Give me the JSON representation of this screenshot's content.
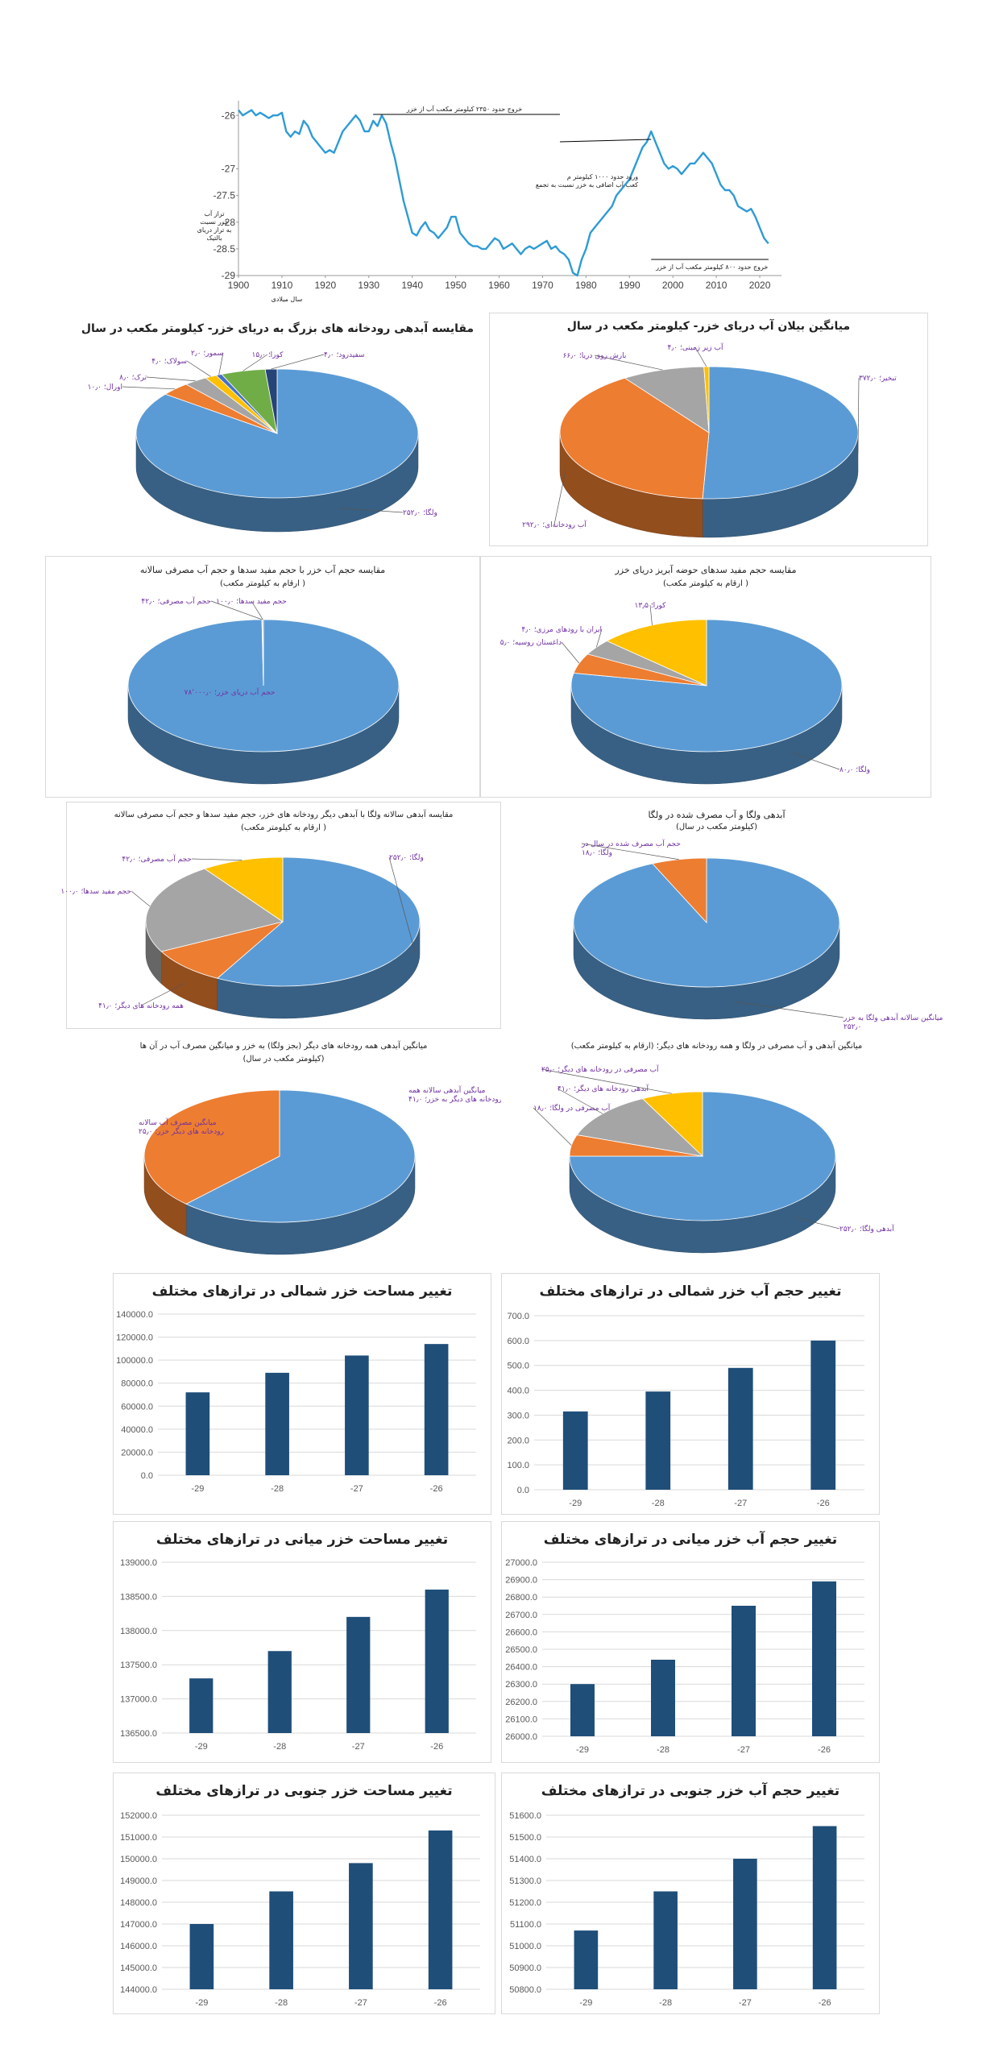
{
  "chart_data": [
    {
      "id": "line",
      "type": "line",
      "title": "",
      "xlabel": "سال میلادی",
      "ylabel": "تراز آب خزر نسبت به تراز دریای بالتیک",
      "xlim": [
        1900,
        2025
      ],
      "ylim": [
        -29,
        -25.8
      ],
      "xticks": [
        "1900",
        "1910",
        "1920",
        "1930",
        "1940",
        "1950",
        "1960",
        "1970",
        "1980",
        "1990",
        "2000",
        "2010",
        "2020"
      ],
      "yticks": [
        "-26",
        "-27",
        "-27.5",
        "-28",
        "-28.5",
        "-29"
      ],
      "ytick_values": [
        -26,
        -27,
        -27.5,
        -28,
        -28.5,
        -29
      ],
      "color": "#2e9bd6",
      "x": [
        1900,
        1901,
        1902,
        1903,
        1904,
        1905,
        1906,
        1907,
        1908,
        1909,
        1910,
        1911,
        1912,
        1913,
        1914,
        1915,
        1916,
        1917,
        1918,
        1919,
        1920,
        1921,
        1922,
        1923,
        1924,
        1925,
        1926,
        1927,
        1928,
        1929,
        1930,
        1931,
        1932,
        1933,
        1934,
        1935,
        1936,
        1937,
        1938,
        1939,
        1940,
        1941,
        1942,
        1943,
        1944,
        1945,
        1946,
        1947,
        1948,
        1949,
        1950,
        1951,
        1952,
        1953,
        1954,
        1955,
        1956,
        1957,
        1958,
        1959,
        1960,
        1961,
        1962,
        1963,
        1964,
        1965,
        1966,
        1967,
        1968,
        1969,
        1970,
        1971,
        1972,
        1973,
        1974,
        1975,
        1976,
        1977,
        1978,
        1979,
        1980,
        1981,
        1982,
        1983,
        1984,
        1985,
        1986,
        1987,
        1988,
        1989,
        1990,
        1991,
        1992,
        1993,
        1994,
        1995,
        1996,
        1997,
        1998,
        1999,
        2000,
        2001,
        2002,
        2003,
        2004,
        2005,
        2006,
        2007,
        2008,
        2009,
        2010,
        2011,
        2012,
        2013,
        2014,
        2015,
        2016,
        2017,
        2018,
        2019,
        2020,
        2021,
        2022
      ],
      "y": [
        -25.9,
        -26.0,
        -25.95,
        -25.9,
        -26.0,
        -25.95,
        -26.0,
        -26.05,
        -26.0,
        -26.0,
        -25.95,
        -26.3,
        -26.4,
        -26.3,
        -26.35,
        -26.1,
        -26.2,
        -26.4,
        -26.5,
        -26.6,
        -26.7,
        -26.65,
        -26.7,
        -26.5,
        -26.3,
        -26.2,
        -26.1,
        -26.0,
        -26.1,
        -26.3,
        -26.3,
        -26.1,
        -26.2,
        -26.0,
        -26.15,
        -26.5,
        -26.8,
        -27.2,
        -27.6,
        -27.9,
        -28.2,
        -28.25,
        -28.1,
        -28.0,
        -28.15,
        -28.2,
        -28.3,
        -28.2,
        -28.1,
        -27.9,
        -27.9,
        -28.2,
        -28.3,
        -28.4,
        -28.45,
        -28.45,
        -28.5,
        -28.5,
        -28.4,
        -28.3,
        -28.35,
        -28.5,
        -28.45,
        -28.4,
        -28.5,
        -28.6,
        -28.5,
        -28.45,
        -28.5,
        -28.45,
        -28.4,
        -28.35,
        -28.5,
        -28.45,
        -28.55,
        -28.6,
        -28.7,
        -28.95,
        -29.0,
        -28.7,
        -28.5,
        -28.2,
        -28.1,
        -28.0,
        -27.9,
        -27.8,
        -27.7,
        -27.5,
        -27.4,
        -27.3,
        -27.2,
        -27.0,
        -26.8,
        -26.6,
        -26.5,
        -26.3,
        -26.5,
        -26.7,
        -26.9,
        -27.0,
        -26.95,
        -27.0,
        -27.1,
        -27.0,
        -26.9,
        -26.9,
        -26.8,
        -26.7,
        -26.8,
        -26.9,
        -27.1,
        -27.3,
        -27.4,
        -27.4,
        -27.5,
        -27.7,
        -27.75,
        -27.8,
        -27.75,
        -27.9,
        -28.1,
        -28.3,
        -28.4
      ],
      "annotations": [
        "خروج حدود ۲۳۵۰ کیلومتر مکعب آب از خزر",
        "ورود حدود ۱۰۰۰ کیلومتر مکعب آب اضافی به خزر نسبت به تجمع",
        "خروج حدود ۸۰۰ کیلومتر مکعب آب از خزر"
      ]
    },
    {
      "id": "pie1",
      "type": "pie",
      "title": "مقایسه آبدهی رودخانه های بزرگ به دریای خزر- کیلومتر مکعب در سال",
      "subtitle": "",
      "colors": [
        "#5b9bd5",
        "#ed7d31",
        "#a5a5a5",
        "#ffc000",
        "#4472c4",
        "#70ad47",
        "#264478"
      ],
      "slices": [
        {
          "name": "ولگا",
          "value": 252,
          "label": "ولگا؛ ۲۵۲٫۰"
        },
        {
          "name": "اورال",
          "value": 10,
          "label": "اورال؛ ۱۰٫۰"
        },
        {
          "name": "ترک",
          "value": 8,
          "label": "ترک؛ ۸٫۰"
        },
        {
          "name": "سولاک",
          "value": 4,
          "label": "سولاک؛ ۴٫۰"
        },
        {
          "name": "سمور",
          "value": 2,
          "label": "سمور؛ ۲٫۰"
        },
        {
          "name": "کورا",
          "value": 15,
          "label": "کورا؛ ۱۵٫۰"
        },
        {
          "name": "سفیدرود",
          "value": 4,
          "label": "سفیدرود؛ ۴٫۰"
        }
      ]
    },
    {
      "id": "pie2",
      "type": "pie",
      "title": "میانگین بیلان آب دریای خزر- کیلومتر مکعب در سال",
      "subtitle": "",
      "colors": [
        "#5b9bd5",
        "#ed7d31",
        "#a5a5a5",
        "#ffc000"
      ],
      "slices": [
        {
          "name": "تبخیر",
          "value": 372,
          "label": "تبخیر؛ ۳۷۲٫۰"
        },
        {
          "name": "آب رودخانه ای",
          "value": 292,
          "label": "آب رودخانه‌ای؛ ۲۹۲٫۰"
        },
        {
          "name": "بارش روی دریا",
          "value": 66,
          "label": "بارش روی دریا؛ ۶۶٫۰"
        },
        {
          "name": "آب زیرزمینی",
          "value": 4,
          "label": "آب زیر زمینی؛ ۴٫۰"
        }
      ]
    },
    {
      "id": "pie3",
      "type": "pie",
      "title": "مقایسه حجم آب خزر با حجم مفید سدها و حجم آب مصرفی سالانه",
      "subtitle": "( ارقام به کیلومتر مکعب)",
      "colors": [
        "#5b9bd5",
        "#ed7d31",
        "#a5a5a5"
      ],
      "slices": [
        {
          "name": "حجم آب دریای خزر",
          "value": 78000,
          "label": "حجم آب دریای خزر؛ ۷۸٬۰۰۰٫۰"
        },
        {
          "name": "حجم آب مصرفی",
          "value": 42,
          "label": "حجم آب مصرفی؛ ۴۲٫۰"
        },
        {
          "name": "حجم مفید سدها",
          "value": 100,
          "label": "حجم مفید سدها؛ ۱۰۰٫۰"
        }
      ]
    },
    {
      "id": "pie4",
      "type": "pie",
      "title": "مقایسه حجم مفید سدهای حوضه آبریز دریای خزر",
      "subtitle": "( ارقام به کیلومتر مکعب)",
      "colors": [
        "#5b9bd5",
        "#ed7d31",
        "#a5a5a5",
        "#ffc000"
      ],
      "slices": [
        {
          "name": "ولگا",
          "value": 80,
          "label": "ولگا؛ ۸۰٫۰"
        },
        {
          "name": "داغستان روسیه",
          "value": 5,
          "label": "داغستان روسیه؛ ۵٫۰"
        },
        {
          "name": "ایران با رودهای مرزی",
          "value": 4,
          "label": "ایران با رودهای مرزی؛ ۴٫۰"
        },
        {
          "name": "کورا",
          "value": 13.5,
          "label": "کورا؛ ۱۳٫۵"
        }
      ]
    },
    {
      "id": "pie5",
      "type": "pie",
      "title": "مقایسه آبدهی سالانه ولگا با آبدهی دیگر رودخانه های خزر، حجم مفید سدها و حجم آب مصرفی سالانه",
      "subtitle": "( ارقام به کیلومتر مکعب)",
      "colors": [
        "#5b9bd5",
        "#ed7d31",
        "#a5a5a5",
        "#ffc000"
      ],
      "slices": [
        {
          "name": "ولگا",
          "value": 252,
          "label": "ولگا؛ ۲۵۲٫۰"
        },
        {
          "name": "همه رودخانه های دیگر",
          "value": 41,
          "label": "همه رودخانه های دیگر؛ ۴۱٫۰"
        },
        {
          "name": "حجم مفید سدها",
          "value": 100,
          "label": "حجم مفید سدها؛ ۱۰۰٫۰"
        },
        {
          "name": "حجم آب مصرفی",
          "value": 42,
          "label": "حجم آب مصرفی؛ ۴۲٫۰"
        }
      ]
    },
    {
      "id": "pie6",
      "type": "pie",
      "title": "آبدهی ولگا و آب مصرف شده در ولگا",
      "subtitle": "(کیلومتر مکعب در سال)",
      "colors": [
        "#5b9bd5",
        "#ed7d31"
      ],
      "slices": [
        {
          "name": "میانگین سالانه آبدهی ولگا به خزر",
          "value": 252,
          "label": "میانگین سالانه آبدهی ولگا به خزر؛ ۲۵۲٫۰"
        },
        {
          "name": "حجم آب مصرف شده در سال در ولگا",
          "value": 18,
          "label": "حجم آب مصرف شده در سال در ولگا؛ ۱۸٫۰"
        }
      ]
    },
    {
      "id": "pie7",
      "type": "pie",
      "title": "میانگین آبدهی همه رودخانه های دیگر (بجز ولگا) به خزر و میانگین مصرف آب در آن ها",
      "subtitle": "(کیلومتر مکعب در سال)",
      "colors": [
        "#5b9bd5",
        "#ed7d31"
      ],
      "slices": [
        {
          "name": "میانگین آبدهی سالانه همه رودخانه های دیگر به خزر",
          "value": 41,
          "label": "میانگین آبدهی سالانه همه رودخانه های دیگر به خزر؛ ۴۱٫۰"
        },
        {
          "name": "میانگین مصرف آب سالانه رودخانه های دیگر خزر",
          "value": 25,
          "label": "میانگین مصرف آب سالانه رودخانه های دیگر خزر؛ ۲۵٫۰"
        }
      ]
    },
    {
      "id": "pie8",
      "type": "pie",
      "title": "میانگین آبدهی و آب مصرفی در ولگا و همه رودخانه های دیگر؛ (ارقام به کیلومتر مکعب)",
      "subtitle": "",
      "colors": [
        "#5b9bd5",
        "#ed7d31",
        "#a5a5a5",
        "#ffc000"
      ],
      "slices": [
        {
          "name": "آبدهی ولگا",
          "value": 252,
          "label": "آبدهی ولگا؛ ۲۵۲٫۰"
        },
        {
          "name": "آب مصرفی در ولگا",
          "value": 18,
          "label": "آب مصرفی در ولگا؛ ۱۸٫۰"
        },
        {
          "name": "آبدهی رودخانه های دیگر",
          "value": 41,
          "label": "آبدهی رودخانه های دیگر؛ ۴۱٫۰"
        },
        {
          "name": "آب مصرفی در رودخانه های دیگر",
          "value": 25,
          "label": "آب مصرفی در رودخانه های دیگر؛ ۲۵٫۰"
        }
      ]
    },
    {
      "id": "bar1",
      "type": "bar",
      "title": "تغییر مساحت خزر شمالی در ترازهای مختلف",
      "categories": [
        "-29",
        "-28",
        "-27",
        "-26"
      ],
      "values": [
        72000,
        89000,
        104000,
        114000
      ],
      "ylim": [
        0,
        140000
      ],
      "yticks": [
        "0.0",
        "20000.0",
        "40000.0",
        "60000.0",
        "80000.0",
        "100000.0",
        "120000.0",
        "140000.0"
      ],
      "color": "#1f4e79"
    },
    {
      "id": "bar2",
      "type": "bar",
      "title": "تغییر حجم آب خزر شمالی در ترازهای مختلف",
      "categories": [
        "-29",
        "-28",
        "-27",
        "-26"
      ],
      "values": [
        315,
        395,
        490,
        600
      ],
      "ylim": [
        0,
        700
      ],
      "yticks": [
        "0.0",
        "100.0",
        "200.0",
        "300.0",
        "400.0",
        "500.0",
        "600.0",
        "700.0"
      ],
      "color": "#1f4e79"
    },
    {
      "id": "bar3",
      "type": "bar",
      "title": "تغییر مساحت خزر میانی در ترازهای مختلف",
      "categories": [
        "-29",
        "-28",
        "-27",
        "-26"
      ],
      "values": [
        137300,
        137700,
        138200,
        138600
      ],
      "ylim": [
        136500,
        139000
      ],
      "yticks": [
        "136500.0",
        "137000.0",
        "137500.0",
        "138000.0",
        "138500.0",
        "139000.0"
      ],
      "color": "#1f4e79"
    },
    {
      "id": "bar4",
      "type": "bar",
      "title": "تغییر حجم آب خزر میانی در ترازهای مختلف",
      "categories": [
        "-29",
        "-28",
        "-27",
        "-26"
      ],
      "values": [
        26300,
        26440,
        26750,
        26890
      ],
      "ylim": [
        26000,
        27000
      ],
      "yticks": [
        "26000.0",
        "26100.0",
        "26200.0",
        "26300.0",
        "26400.0",
        "26500.0",
        "26600.0",
        "26700.0",
        "26800.0",
        "26900.0",
        "27000.0"
      ],
      "color": "#1f4e79"
    },
    {
      "id": "bar5",
      "type": "bar",
      "title": "تغییر مساحت خزر جنوبی در ترازهای مختلف",
      "categories": [
        "-29",
        "-28",
        "-27",
        "-26"
      ],
      "values": [
        147000,
        148500,
        149800,
        151300
      ],
      "ylim": [
        144000,
        152000
      ],
      "yticks": [
        "144000.0",
        "145000.0",
        "146000.0",
        "147000.0",
        "148000.0",
        "149000.0",
        "150000.0",
        "151000.0",
        "152000.0"
      ],
      "color": "#1f4e79"
    },
    {
      "id": "bar6",
      "type": "bar",
      "title": "تغییر حجم آب خزر جنوبی در ترازهای مختلف",
      "categories": [
        "-29",
        "-28",
        "-27",
        "-26"
      ],
      "values": [
        51070,
        51250,
        51400,
        51550
      ],
      "ylim": [
        50800,
        51600
      ],
      "yticks": [
        "50800.0",
        "50900.0",
        "51000.0",
        "51100.0",
        "51200.0",
        "51300.0",
        "51400.0",
        "51500.0",
        "51600.0"
      ],
      "color": "#1f4e79"
    }
  ]
}
